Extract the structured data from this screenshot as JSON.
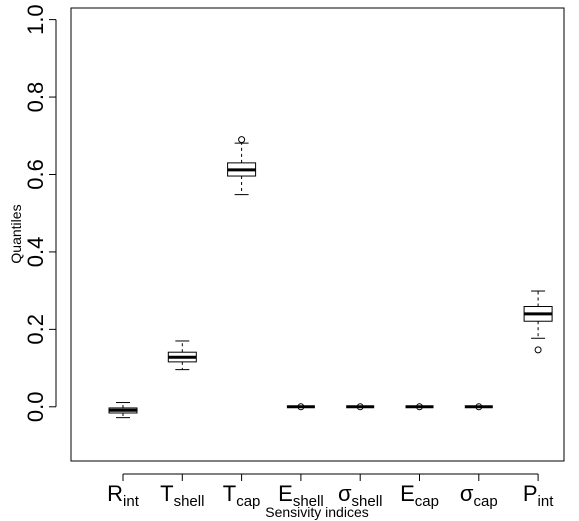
{
  "chart_data": {
    "type": "boxplot",
    "xlabel": "Sensivity indices",
    "ylabel": "Quantiles",
    "ylim": [
      -0.14,
      1.03
    ],
    "yticks": [
      0.0,
      0.2,
      0.4,
      0.6,
      0.8,
      1.0
    ],
    "ytick_labels": [
      "0.0",
      "0.2",
      "0.4",
      "0.6",
      "0.8",
      "1.0"
    ],
    "grid": false,
    "categories": [
      {
        "base": "R",
        "sub": "int"
      },
      {
        "base": "T",
        "sub": "shell"
      },
      {
        "base": "T",
        "sub": "cap"
      },
      {
        "base": "E",
        "sub": "shell"
      },
      {
        "base": "σ",
        "sub": "shell"
      },
      {
        "base": "E",
        "sub": "cap"
      },
      {
        "base": "σ",
        "sub": "cap"
      },
      {
        "base": "P",
        "sub": "int"
      }
    ],
    "boxes": [
      {
        "whisker_low": -0.028,
        "q1": -0.016,
        "median": -0.009,
        "q3": -0.003,
        "whisker_high": 0.011,
        "outliers": []
      },
      {
        "whisker_low": 0.096,
        "q1": 0.116,
        "median": 0.128,
        "q3": 0.141,
        "whisker_high": 0.17,
        "outliers": []
      },
      {
        "whisker_low": 0.548,
        "q1": 0.596,
        "median": 0.612,
        "q3": 0.63,
        "whisker_high": 0.681,
        "outliers": [
          0.69
        ]
      },
      {
        "whisker_low": 0.0,
        "q1": 0.0,
        "median": 0.0,
        "q3": 0.0,
        "whisker_high": 0.0,
        "outliers": [
          0.0
        ]
      },
      {
        "whisker_low": 0.0,
        "q1": 0.0,
        "median": 0.0,
        "q3": 0.0,
        "whisker_high": 0.0,
        "outliers": [
          0.0
        ]
      },
      {
        "whisker_low": 0.0,
        "q1": 0.0,
        "median": 0.0,
        "q3": 0.0,
        "whisker_high": 0.0,
        "outliers": [
          0.0
        ]
      },
      {
        "whisker_low": 0.0,
        "q1": 0.0,
        "median": 0.0,
        "q3": 0.0,
        "whisker_high": 0.0,
        "outliers": [
          0.0
        ]
      },
      {
        "whisker_low": 0.177,
        "q1": 0.221,
        "median": 0.24,
        "q3": 0.259,
        "whisker_high": 0.299,
        "outliers": [
          0.147
        ]
      }
    ]
  }
}
